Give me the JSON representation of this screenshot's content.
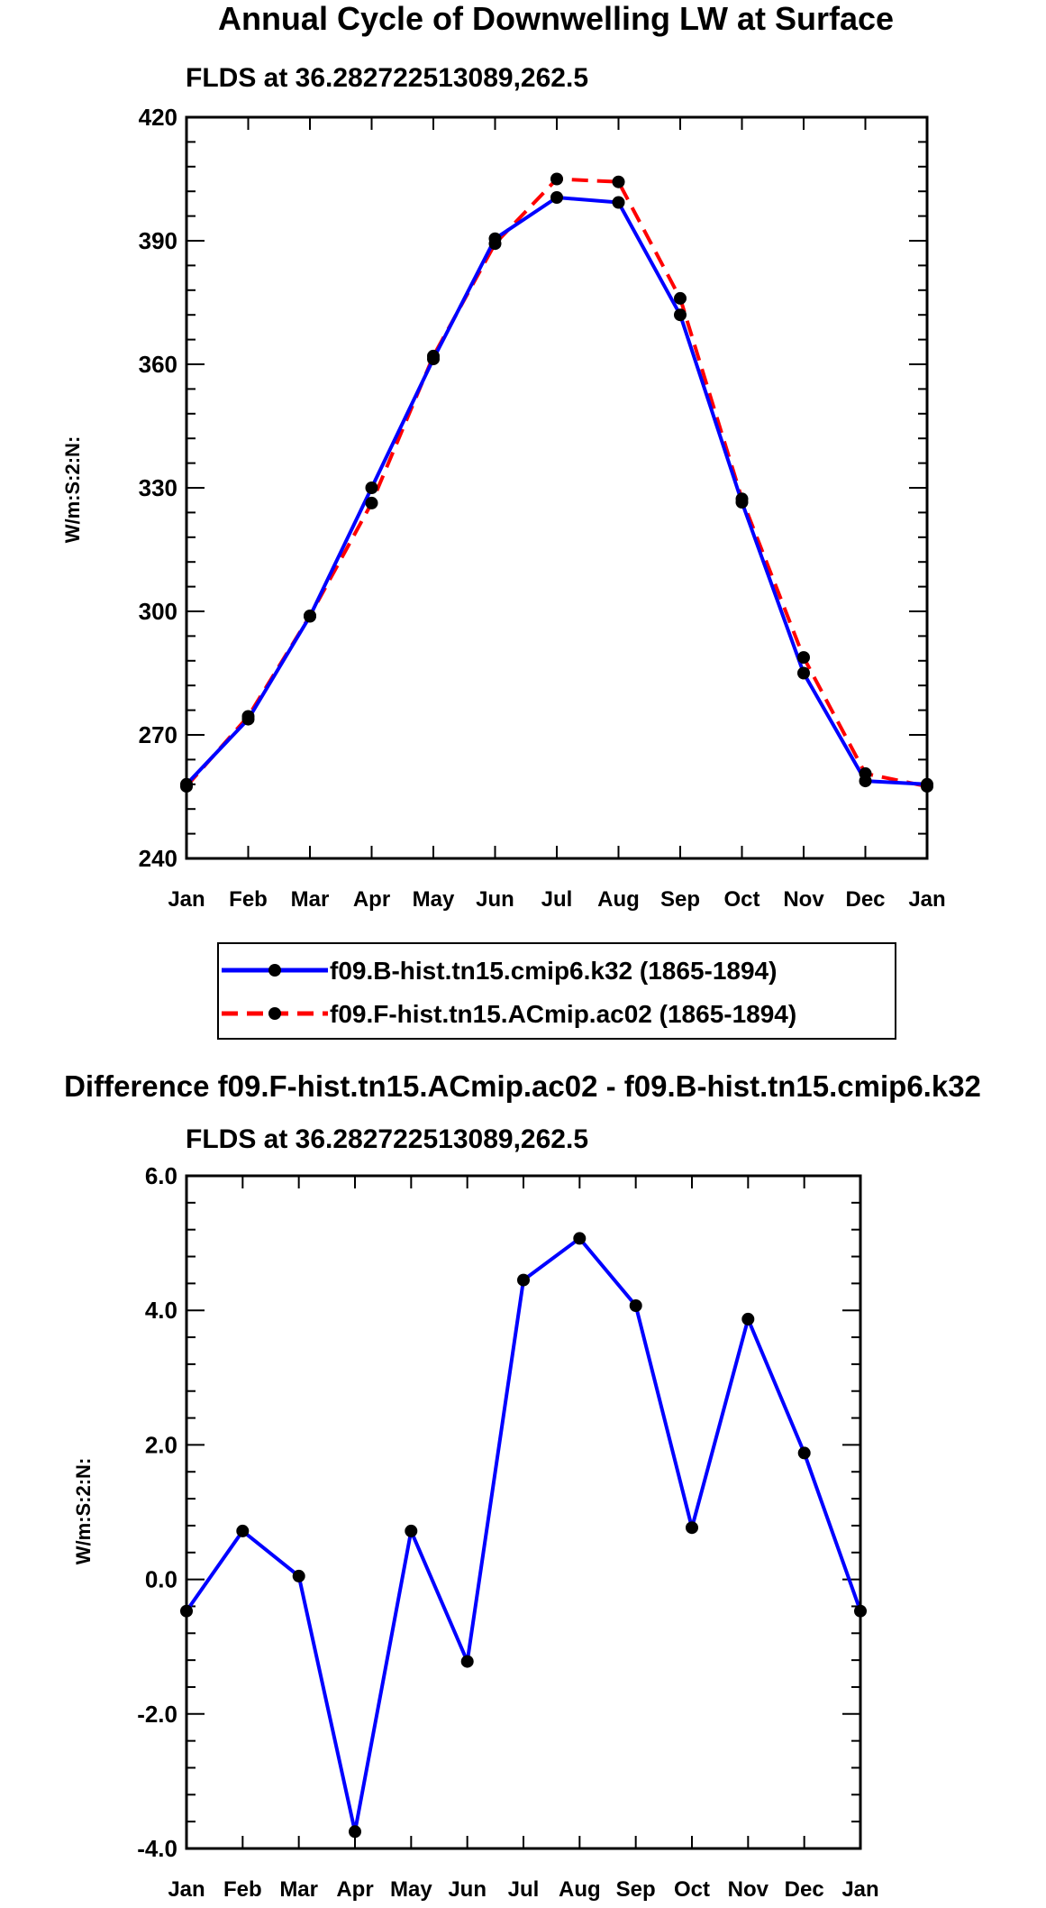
{
  "chart_data": [
    {
      "type": "line",
      "title": "Annual Cycle of Downwelling LW at Surface",
      "subtitle": "FLDS at 36.282722513089,262.5",
      "xlabel": "",
      "ylabel": "W/m:S:2:N:",
      "categories": [
        "Jan",
        "Feb",
        "Mar",
        "Apr",
        "May",
        "Jun",
        "Jul",
        "Aug",
        "Sep",
        "Oct",
        "Nov",
        "Dec",
        "Jan"
      ],
      "ylim": [
        240,
        420
      ],
      "yticks": [
        "240",
        "270",
        "300",
        "330",
        "360",
        "390",
        "420"
      ],
      "grid": false,
      "legend_position": "bottom-center",
      "series": [
        {
          "name": "f09.B-hist.tn15.cmip6.k32 (1865-1894)",
          "color": "#0000ff",
          "dash": "solid",
          "values": [
            258.0,
            273.8,
            298.8,
            330.0,
            361.3,
            390.5,
            400.5,
            399.3,
            372.0,
            326.5,
            285.0,
            258.8,
            258.0
          ]
        },
        {
          "name": "f09.F-hist.tn15.ACmip.ac02 (1865-1894)",
          "color": "#ff0000",
          "dash": "dashed",
          "values": [
            257.5,
            274.5,
            298.9,
            326.3,
            362.0,
            389.3,
            405.0,
            404.3,
            376.0,
            327.3,
            288.8,
            260.6,
            257.5
          ]
        }
      ]
    },
    {
      "type": "line",
      "title": "Difference f09.F-hist.tn15.ACmip.ac02 - f09.B-hist.tn15.cmip6.k32",
      "subtitle": "FLDS at 36.282722513089,262.5",
      "xlabel": "",
      "ylabel": "W/m:S:2:N:",
      "categories": [
        "Jan",
        "Feb",
        "Mar",
        "Apr",
        "May",
        "Jun",
        "Jul",
        "Aug",
        "Sep",
        "Oct",
        "Nov",
        "Dec",
        "Jan"
      ],
      "ylim": [
        -4.0,
        6.0
      ],
      "yticks": [
        "-4.0",
        "-2.0",
        "0.0",
        "2.0",
        "4.0",
        "6.0"
      ],
      "grid": false,
      "series": [
        {
          "name": "difference",
          "color": "#0000ff",
          "dash": "solid",
          "values": [
            -0.47,
            0.72,
            0.05,
            -3.75,
            0.72,
            -1.22,
            4.45,
            5.07,
            4.07,
            0.77,
            3.87,
            1.88,
            -0.47
          ]
        }
      ]
    }
  ]
}
